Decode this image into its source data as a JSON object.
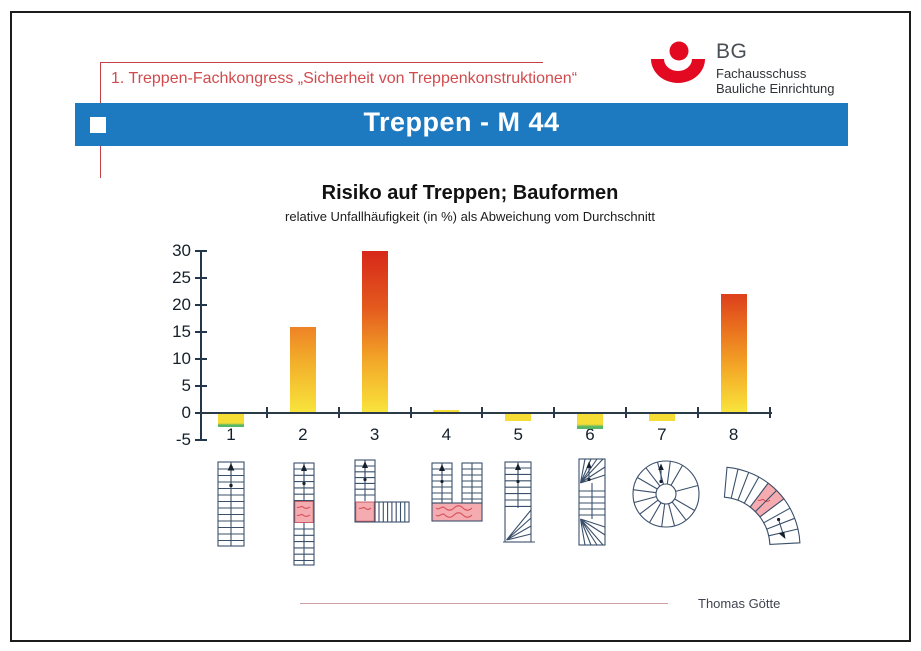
{
  "header": {
    "congress": "1. Treppen-Fachkongress „Sicherheit von Treppenkonstruktionen“"
  },
  "logo": {
    "org": "BG",
    "line1": "Fachausschuss",
    "line2": "Bauliche Einrichtung"
  },
  "banner": {
    "title": "Treppen - M 44"
  },
  "footer": {
    "author": "Thomas Götte"
  },
  "colors": {
    "banner_blue": "#1d7ac1",
    "accent_red": "#c24046",
    "logo_red": "#e30921",
    "bar_yellow": "#f6dd35",
    "bar_orange": "#ee8c28",
    "bar_red": "#d7281a",
    "bar_green_edge": "#58b667",
    "diagram_line": "#3b506b",
    "landing_pink": "#f4acb0"
  },
  "chart_data": {
    "type": "bar",
    "title": "Risiko auf Treppen; Bauformen",
    "subtitle": "relative Unfallhäufigkeit (in %) als Abweichung vom Durchschnitt",
    "categories": [
      "1",
      "2",
      "3",
      "4",
      "5",
      "6",
      "7",
      "8"
    ],
    "values": [
      -2.5,
      16,
      30,
      0.5,
      -1.5,
      -3,
      -1.5,
      22
    ],
    "ylim": [
      -5,
      30
    ],
    "yticks": [
      30,
      25,
      20,
      15,
      10,
      5,
      0,
      -5
    ],
    "xlabel": "",
    "ylabel": "",
    "grid": false,
    "legend": "none",
    "category_icons": [
      "straight-stair-icon",
      "straight-stair-mid-landing-icon",
      "quarter-turn-stair-corner-landing-icon",
      "half-turn-stair-bottom-landing-icon",
      "straight-stair-bottom-winders-icon",
      "stair-winders-both-ends-icon",
      "spiral-stair-icon",
      "curved-stair-mid-landing-icon"
    ],
    "bar_gradients": [
      [
        "#f6dd35 0%",
        "#f6dd35 72%",
        "#58b667 86%",
        "#58b667 100%"
      ],
      [
        "#ee8226 0%",
        "#f2ae2a 40%",
        "#f8e53c 100%"
      ],
      [
        "#d7281a 0%",
        "#e45a1e 35%",
        "#f3a828 68%",
        "#f9e53c 100%"
      ],
      [
        "#f6dd35 0%",
        "#f6dd35 100%"
      ],
      [
        "#f6dd35 0%",
        "#f6dd35 100%"
      ],
      [
        "#f6dd35 0%",
        "#f6dd35 70%",
        "#58b667 85%",
        "#58b667 100%"
      ],
      [
        "#f6dd35 0%",
        "#f6dd35 100%"
      ],
      [
        "#dd3f1c 0%",
        "#ec7a1f 35%",
        "#f4ad28 65%",
        "#f9e53c 100%"
      ]
    ]
  }
}
